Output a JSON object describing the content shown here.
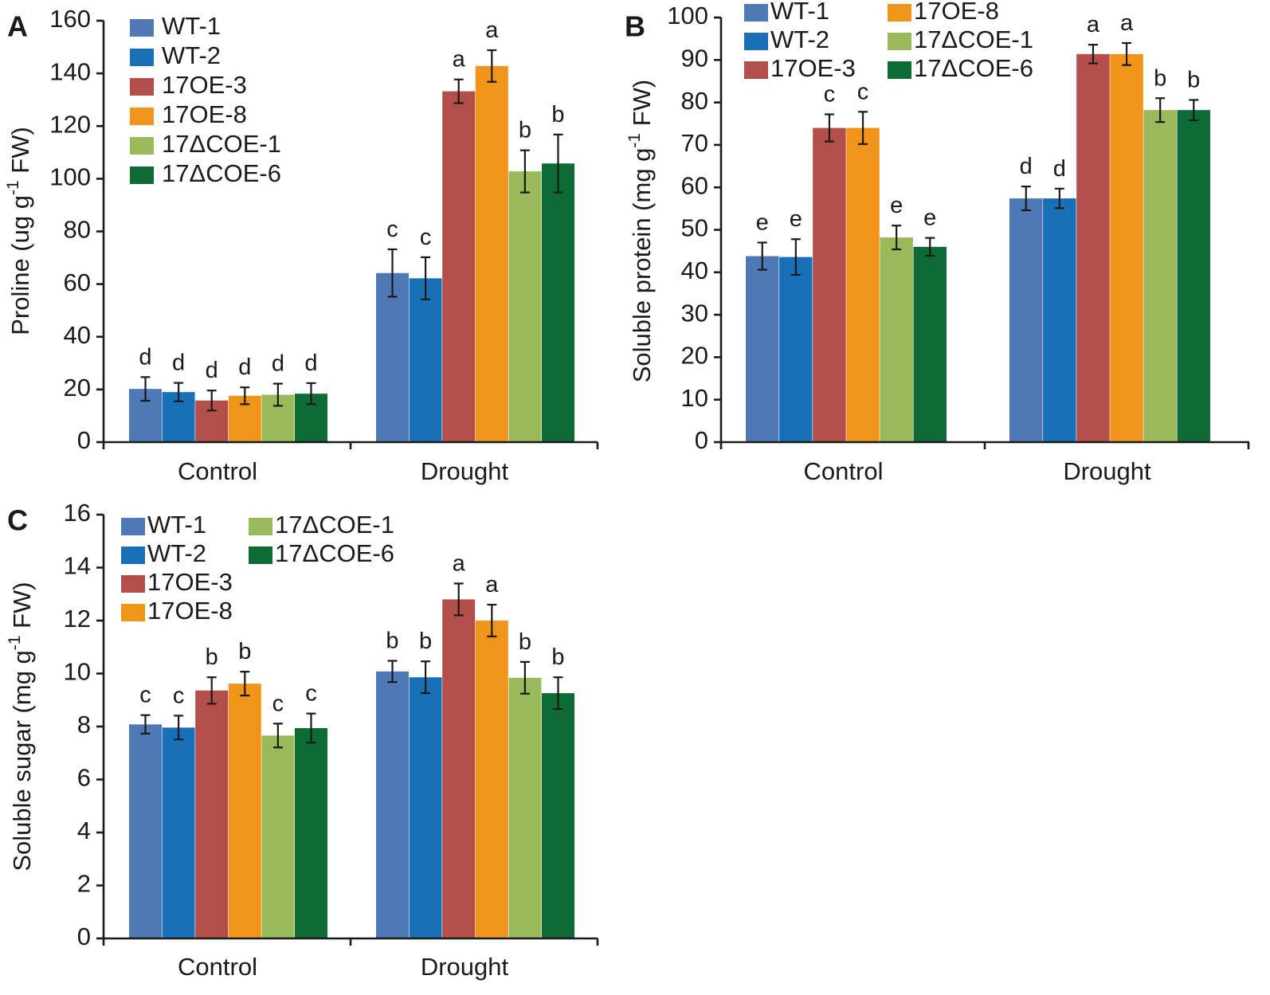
{
  "chart_data": [
    {
      "panel": "A",
      "type": "bar",
      "categories": [
        "Control",
        "Drought"
      ],
      "ylabel": "Proline (ug g-1 FW)",
      "ylabel_parts": {
        "before": "Proline (ug g",
        "sup": "-1",
        "after": " FW)"
      },
      "ylim": [
        0,
        160
      ],
      "yticks": [
        0,
        20,
        40,
        60,
        80,
        100,
        120,
        140,
        160
      ],
      "legend": [
        "WT-1",
        "WT-2",
        "17OE-3",
        "17OE-8",
        "17ΔCOE-1",
        "17ΔCOE-6"
      ],
      "series": [
        {
          "name": "WT-1",
          "values": [
            20.2,
            64.2
          ],
          "errors": [
            4.5,
            9.0
          ],
          "letters": [
            "d",
            "c"
          ]
        },
        {
          "name": "WT-2",
          "values": [
            19.0,
            62.2
          ],
          "errors": [
            3.5,
            8.0
          ],
          "letters": [
            "d",
            "c"
          ]
        },
        {
          "name": "17OE-3",
          "values": [
            15.8,
            133.2
          ],
          "errors": [
            3.8,
            4.5
          ],
          "letters": [
            "d",
            "a"
          ]
        },
        {
          "name": "17OE-8",
          "values": [
            17.6,
            142.8
          ],
          "errors": [
            3.2,
            6.0
          ],
          "letters": [
            "d",
            "a"
          ]
        },
        {
          "name": "17ΔCOE-1",
          "values": [
            18.0,
            102.8
          ],
          "errors": [
            4.2,
            8.0
          ],
          "letters": [
            "d",
            "b"
          ]
        },
        {
          "name": "17ΔCOE-6",
          "values": [
            18.4,
            105.8
          ],
          "errors": [
            4.0,
            11.0
          ],
          "letters": [
            "d",
            "b"
          ]
        }
      ]
    },
    {
      "panel": "B",
      "type": "bar",
      "categories": [
        "Control",
        "Drought"
      ],
      "ylabel": "Soluble protein (mg g-1 FW)",
      "ylabel_parts": {
        "before": "Soluble protein (mg g",
        "sup": "-1",
        "after": " FW)"
      },
      "ylim": [
        0,
        100
      ],
      "yticks": [
        0,
        10,
        20,
        30,
        40,
        50,
        60,
        70,
        80,
        90,
        100
      ],
      "legend": [
        "WT-1",
        "WT-2",
        "17OE-3",
        "17OE-8",
        "17ΔCOE-1",
        "17ΔCOE-6"
      ],
      "series": [
        {
          "name": "WT-1",
          "values": [
            43.8,
            57.4
          ],
          "errors": [
            3.2,
            2.8
          ],
          "letters": [
            "e",
            "d"
          ]
        },
        {
          "name": "WT-2",
          "values": [
            43.6,
            57.4
          ],
          "errors": [
            4.2,
            2.3
          ],
          "letters": [
            "e",
            "d"
          ]
        },
        {
          "name": "17OE-3",
          "values": [
            74.0,
            91.4
          ],
          "errors": [
            3.2,
            2.2
          ],
          "letters": [
            "c",
            "a"
          ]
        },
        {
          "name": "17OE-8",
          "values": [
            74.0,
            91.4
          ],
          "errors": [
            3.8,
            2.6
          ],
          "letters": [
            "c",
            "a"
          ]
        },
        {
          "name": "17ΔCOE-1",
          "values": [
            48.2,
            78.2
          ],
          "errors": [
            2.8,
            2.8
          ],
          "letters": [
            "e",
            "b"
          ]
        },
        {
          "name": "17ΔCOE-6",
          "values": [
            46.0,
            78.2
          ],
          "errors": [
            2.1,
            2.4
          ],
          "letters": [
            "e",
            "b"
          ]
        }
      ]
    },
    {
      "panel": "C",
      "type": "bar",
      "categories": [
        "Control",
        "Drought"
      ],
      "ylabel": "Soluble sugar (mg g-1 FW)",
      "ylabel_parts": {
        "before": "Soluble sugar (mg g",
        "sup": "-1",
        "after": " FW)"
      },
      "ylim": [
        0,
        16
      ],
      "yticks": [
        0,
        2,
        4,
        6,
        8,
        10,
        12,
        14,
        16
      ],
      "legend": [
        "WT-1",
        "WT-2",
        "17OE-3",
        "17OE-8",
        "17ΔCOE-1",
        "17ΔCOE-6"
      ],
      "series": [
        {
          "name": "WT-1",
          "values": [
            8.08,
            10.08
          ],
          "errors": [
            0.35,
            0.4
          ],
          "letters": [
            "c",
            "b"
          ]
        },
        {
          "name": "WT-2",
          "values": [
            7.96,
            9.86
          ],
          "errors": [
            0.45,
            0.6
          ],
          "letters": [
            "c",
            "b"
          ]
        },
        {
          "name": "17OE-3",
          "values": [
            9.36,
            12.8
          ],
          "errors": [
            0.5,
            0.6
          ],
          "letters": [
            "b",
            "a"
          ]
        },
        {
          "name": "17OE-8",
          "values": [
            9.62,
            12.0
          ],
          "errors": [
            0.45,
            0.6
          ],
          "letters": [
            "b",
            "a"
          ]
        },
        {
          "name": "17ΔCOE-1",
          "values": [
            7.66,
            9.84
          ],
          "errors": [
            0.45,
            0.6
          ],
          "letters": [
            "c",
            "b"
          ]
        },
        {
          "name": "17ΔCOE-6",
          "values": [
            7.94,
            9.26
          ],
          "errors": [
            0.55,
            0.6
          ],
          "letters": [
            "c",
            "b"
          ]
        }
      ]
    }
  ],
  "series_colors": [
    "#4f79b4",
    "#1a6fb9",
    "#b44e4b",
    "#f0941a",
    "#9ab95a",
    "#0e6b35"
  ]
}
